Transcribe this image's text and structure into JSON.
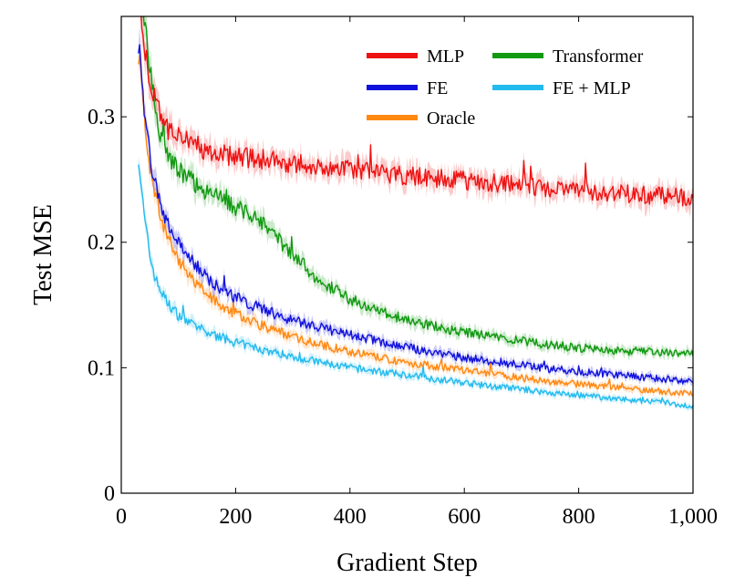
{
  "chart_data": {
    "type": "line",
    "title": "",
    "xlabel": "Gradient Step",
    "ylabel": "Test MSE",
    "xlim": [
      0,
      1000
    ],
    "ylim": [
      0,
      0.38
    ],
    "x_ticks": [
      0,
      200,
      400,
      600,
      800,
      1000
    ],
    "x_tick_labels": [
      "0",
      "200",
      "400",
      "600",
      "800",
      "1,000"
    ],
    "y_ticks": [
      0,
      0.1,
      0.2,
      0.3
    ],
    "y_tick_labels": [
      "0",
      "0.1",
      "0.2",
      "0.3"
    ],
    "grid": false,
    "legend_position": "top-right",
    "shaded_band": true,
    "x": [
      30,
      40,
      50,
      60,
      80,
      100,
      125,
      150,
      175,
      200,
      250,
      300,
      350,
      400,
      450,
      500,
      550,
      600,
      650,
      700,
      750,
      800,
      850,
      900,
      950,
      1000
    ],
    "series": [
      {
        "name": "MLP",
        "color": "#ee1111",
        "values": [
          0.4,
          0.36,
          0.33,
          0.31,
          0.29,
          0.283,
          0.278,
          0.273,
          0.27,
          0.268,
          0.266,
          0.263,
          0.26,
          0.258,
          0.256,
          0.253,
          0.251,
          0.249,
          0.247,
          0.245,
          0.243,
          0.241,
          0.24,
          0.238,
          0.237,
          0.235
        ]
      },
      {
        "name": "FE",
        "color": "#1111dd",
        "values": [
          0.36,
          0.31,
          0.27,
          0.245,
          0.215,
          0.2,
          0.185,
          0.172,
          0.163,
          0.156,
          0.146,
          0.138,
          0.132,
          0.126,
          0.121,
          0.116,
          0.112,
          0.108,
          0.105,
          0.102,
          0.099,
          0.097,
          0.095,
          0.093,
          0.091,
          0.089
        ]
      },
      {
        "name": "Oracle",
        "color": "#ff8811",
        "values": [
          0.35,
          0.3,
          0.26,
          0.235,
          0.205,
          0.185,
          0.17,
          0.158,
          0.15,
          0.143,
          0.133,
          0.125,
          0.118,
          0.113,
          0.108,
          0.104,
          0.101,
          0.098,
          0.095,
          0.092,
          0.089,
          0.087,
          0.085,
          0.083,
          0.081,
          0.079
        ]
      },
      {
        "name": "Transformer",
        "color": "#119911",
        "values": [
          0.4,
          0.38,
          0.34,
          0.3,
          0.27,
          0.258,
          0.248,
          0.24,
          0.234,
          0.228,
          0.215,
          0.19,
          0.168,
          0.155,
          0.145,
          0.138,
          0.133,
          0.128,
          0.125,
          0.121,
          0.118,
          0.116,
          0.114,
          0.113,
          0.112,
          0.111
        ]
      },
      {
        "name": "FE + MLP",
        "color": "#22bbee",
        "values": [
          0.27,
          0.22,
          0.19,
          0.17,
          0.152,
          0.142,
          0.134,
          0.128,
          0.124,
          0.12,
          0.114,
          0.109,
          0.104,
          0.1,
          0.097,
          0.094,
          0.091,
          0.088,
          0.085,
          0.083,
          0.08,
          0.078,
          0.076,
          0.074,
          0.072,
          0.069
        ]
      }
    ],
    "legend_order": [
      [
        "MLP",
        "Transformer"
      ],
      [
        "FE",
        "FE + MLP"
      ],
      [
        "Oracle"
      ]
    ]
  }
}
